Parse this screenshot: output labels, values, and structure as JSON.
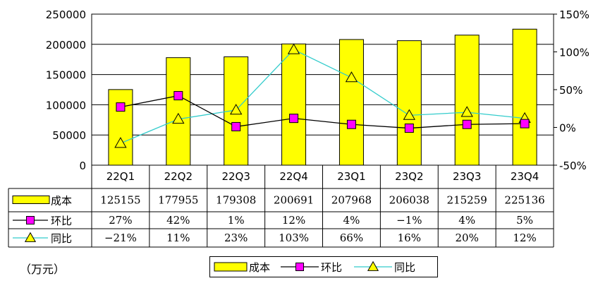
{
  "unit_label": "（万元）",
  "chart_data": {
    "type": "bar",
    "categories": [
      "22Q1",
      "22Q2",
      "22Q3",
      "22Q4",
      "23Q1",
      "23Q2",
      "23Q3",
      "23Q4"
    ],
    "series": [
      {
        "name": "成本",
        "kind": "bar",
        "axis": "left",
        "color": "#FFFF00",
        "values": [
          125155,
          177955,
          179308,
          200691,
          207968,
          206038,
          215259,
          225136
        ]
      },
      {
        "name": "环比",
        "kind": "line",
        "axis": "right",
        "color": "#000000",
        "marker": "square",
        "marker_color": "#FF00FF",
        "values": [
          27,
          42,
          1,
          12,
          4,
          -1,
          4,
          5
        ]
      },
      {
        "name": "同比",
        "kind": "line",
        "axis": "right",
        "color": "#33CCCC",
        "marker": "triangle",
        "marker_color": "#FFFF00",
        "values": [
          -21,
          11,
          23,
          103,
          66,
          16,
          20,
          12
        ]
      }
    ],
    "table_rows": [
      [
        "125155",
        "177955",
        "179308",
        "200691",
        "207968",
        "206038",
        "215259",
        "225136"
      ],
      [
        "27%",
        "42%",
        "1%",
        "12%",
        "4%",
        "-1%",
        "4%",
        "5%"
      ],
      [
        "-21%",
        "11%",
        "23%",
        "103%",
        "66%",
        "16%",
        "20%",
        "12%"
      ]
    ],
    "y_left": {
      "range": [
        0,
        250000
      ],
      "ticks": [
        "0",
        "50000",
        "100000",
        "150000",
        "200000",
        "250000"
      ]
    },
    "y_right": {
      "range": [
        -50,
        150
      ],
      "ticks": [
        "-50%",
        "0%",
        "50%",
        "100%",
        "150%"
      ]
    },
    "grid": true,
    "legend_position": "bottom"
  }
}
